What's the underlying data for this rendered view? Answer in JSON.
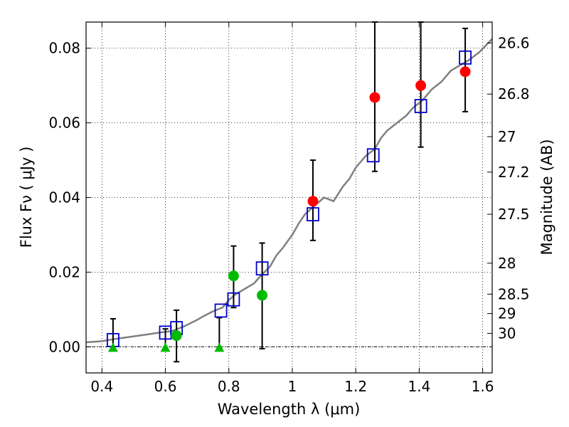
{
  "chart_data": {
    "type": "scatter",
    "title": "",
    "xlabel": "Wavelength  λ (μm)",
    "ylabel": "Flux  Fν  ( μJy )",
    "y2label": "Magnitude (AB)",
    "xlim": [
      0.35,
      1.63
    ],
    "ylim": [
      -0.007,
      0.087
    ],
    "grid": true,
    "legend": "none",
    "x_ticks": [
      {
        "value": 0.4,
        "label": "0.4"
      },
      {
        "value": 0.6,
        "label": "0.6"
      },
      {
        "value": 0.8,
        "label": "0.8"
      },
      {
        "value": 1.0,
        "label": "1"
      },
      {
        "value": 1.2,
        "label": "1.2"
      },
      {
        "value": 1.4,
        "label": "1.4"
      },
      {
        "value": 1.6,
        "label": "1.6"
      }
    ],
    "y_ticks": [
      {
        "value": 0.0,
        "label": "0.00"
      },
      {
        "value": 0.02,
        "label": "0.02"
      },
      {
        "value": 0.04,
        "label": "0.04"
      },
      {
        "value": 0.06,
        "label": "0.06"
      },
      {
        "value": 0.08,
        "label": "0.08"
      }
    ],
    "magnitude_ticks": [
      {
        "label": "26.6",
        "flux": 0.0814
      },
      {
        "label": "26.8",
        "flux": 0.0677
      },
      {
        "label": "27",
        "flux": 0.0563
      },
      {
        "label": "27.2",
        "flux": 0.0468
      },
      {
        "label": "27.5",
        "flux": 0.0355
      },
      {
        "label": "28",
        "flux": 0.0224
      },
      {
        "label": "28.5",
        "flux": 0.0141
      },
      {
        "label": "29",
        "flux": 0.0089
      },
      {
        "label": "30",
        "flux": 0.0036
      }
    ],
    "model_spectrum": {
      "color": "#808080",
      "x": [
        0.35,
        0.4,
        0.45,
        0.5,
        0.55,
        0.58,
        0.62,
        0.66,
        0.7,
        0.72,
        0.75,
        0.78,
        0.8,
        0.82,
        0.85,
        0.88,
        0.9,
        0.93,
        0.95,
        0.97,
        1.0,
        1.02,
        1.04,
        1.06,
        1.08,
        1.1,
        1.13,
        1.16,
        1.18,
        1.2,
        1.23,
        1.26,
        1.28,
        1.3,
        1.33,
        1.36,
        1.38,
        1.41,
        1.44,
        1.47,
        1.5,
        1.53,
        1.56,
        1.59,
        1.63
      ],
      "y": [
        0.0012,
        0.0015,
        0.0022,
        0.0028,
        0.0034,
        0.0038,
        0.0042,
        0.0055,
        0.0072,
        0.0082,
        0.0095,
        0.0105,
        0.0125,
        0.014,
        0.0155,
        0.017,
        0.019,
        0.0215,
        0.0245,
        0.0265,
        0.03,
        0.033,
        0.0355,
        0.037,
        0.0385,
        0.04,
        0.039,
        0.043,
        0.045,
        0.048,
        0.051,
        0.053,
        0.056,
        0.058,
        0.06,
        0.062,
        0.064,
        0.066,
        0.069,
        0.071,
        0.074,
        0.0755,
        0.077,
        0.079,
        0.0825
      ]
    },
    "series": [
      {
        "marker": "open-square",
        "color": "#0000cc",
        "points": [
          {
            "x": 0.435,
            "y": 0.0018
          },
          {
            "x": 0.6,
            "y": 0.0038
          },
          {
            "x": 0.635,
            "y": 0.005
          },
          {
            "x": 0.775,
            "y": 0.0097
          },
          {
            "x": 0.815,
            "y": 0.0127
          },
          {
            "x": 0.905,
            "y": 0.021
          },
          {
            "x": 1.065,
            "y": 0.0355
          },
          {
            "x": 1.255,
            "y": 0.0513
          },
          {
            "x": 1.405,
            "y": 0.0645
          },
          {
            "x": 1.545,
            "y": 0.0775
          }
        ]
      },
      {
        "marker": "filled-circle",
        "color": "#ff0000",
        "points": [
          {
            "x": 1.065,
            "y": 0.039,
            "err_low": 0.0285,
            "err_high": 0.05
          },
          {
            "x": 1.26,
            "y": 0.0668,
            "err_low": 0.047,
            "err_high": 0.087
          },
          {
            "x": 1.405,
            "y": 0.07,
            "err_low": 0.0535,
            "err_high": 0.087
          },
          {
            "x": 1.545,
            "y": 0.0737,
            "err_low": 0.063,
            "err_high": 0.0853
          }
        ]
      },
      {
        "marker": "filled-circle",
        "color": "#00bb00",
        "points": [
          {
            "x": 0.635,
            "y": 0.003,
            "err_low": -0.004,
            "err_high": 0.0098
          },
          {
            "x": 0.815,
            "y": 0.019,
            "err_low": 0.0105,
            "err_high": 0.027
          },
          {
            "x": 0.905,
            "y": 0.0138,
            "err_low": -0.0005,
            "err_high": 0.0278
          }
        ]
      },
      {
        "marker": "filled-triangle",
        "color": "#00bb00",
        "points": [
          {
            "x": 0.435,
            "y": -0.0002,
            "err_low": -0.0002,
            "err_high": 0.0075
          },
          {
            "x": 0.6,
            "y": -0.0002,
            "err_low": -0.0002,
            "err_high": 0.0048
          },
          {
            "x": 0.77,
            "y": -0.0002,
            "err_low": -0.0002,
            "err_high": 0.0078
          }
        ]
      }
    ]
  }
}
